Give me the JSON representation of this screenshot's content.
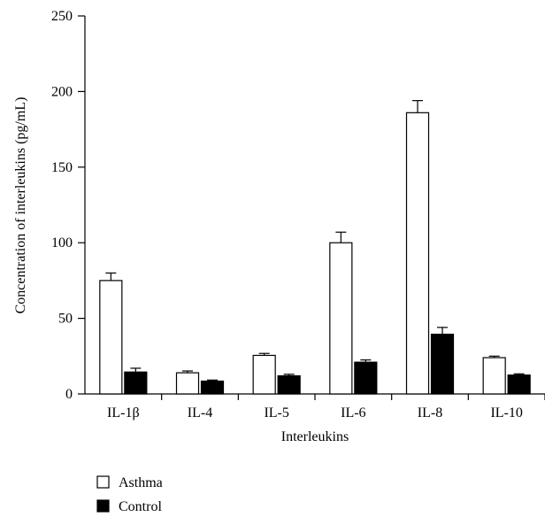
{
  "chart_data": {
    "type": "bar",
    "title": "",
    "xlabel": "Interleukins",
    "ylabel": "Concentration of interleukins (pg/mL)",
    "ylim": [
      0,
      250
    ],
    "yticks": [
      0,
      50,
      100,
      150,
      200,
      250
    ],
    "categories": [
      "IL-1β",
      "IL-4",
      "IL-5",
      "IL-6",
      "IL-8",
      "IL-10"
    ],
    "series": [
      {
        "name": "Asthma",
        "color": "#ffffff",
        "values": [
          75,
          14,
          25.5,
          100,
          186,
          24
        ],
        "errors": [
          5,
          1.2,
          1.3,
          7,
          8,
          1
        ]
      },
      {
        "name": "Control",
        "color": "#000000",
        "values": [
          14.5,
          8.5,
          12,
          21,
          39.5,
          12.5
        ],
        "errors": [
          2.5,
          0.7,
          1,
          1.5,
          4.5,
          0.8
        ]
      }
    ],
    "grid": false,
    "legend": "bottom-left"
  }
}
